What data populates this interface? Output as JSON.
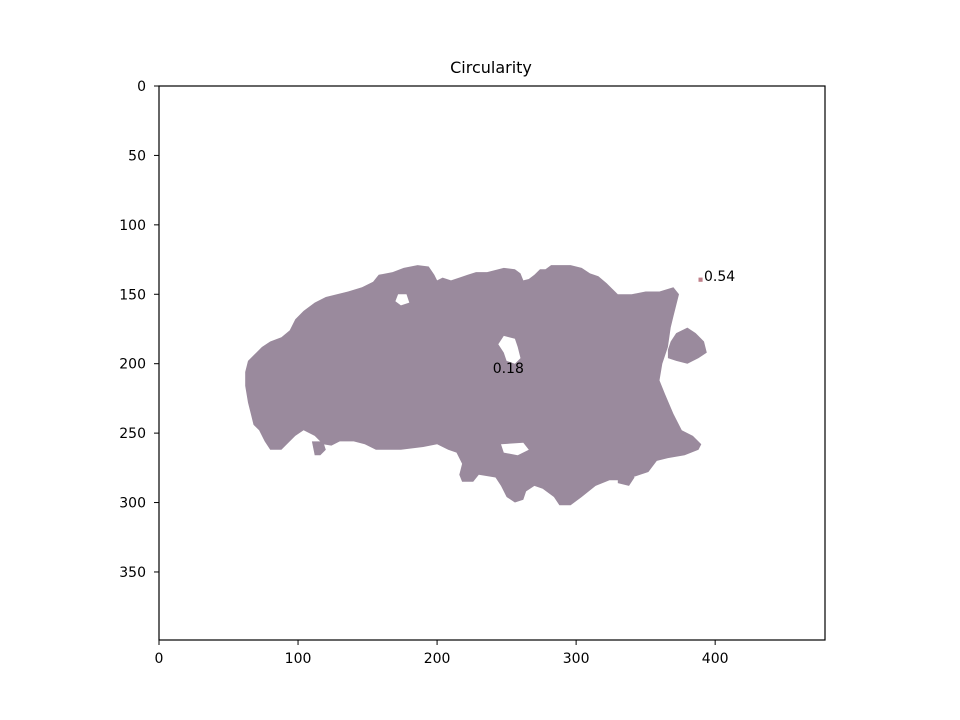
{
  "chart_data": {
    "type": "image",
    "title": "Circularity",
    "xlabel": "",
    "ylabel": "",
    "xlim": [
      0,
      479
    ],
    "ylim": [
      399,
      0
    ],
    "y_inverted": true,
    "x_ticks": [
      0,
      100,
      200,
      300,
      400
    ],
    "y_ticks": [
      0,
      50,
      100,
      150,
      200,
      250,
      300,
      350
    ],
    "x_tick_labels": [
      "0",
      "100",
      "200",
      "300",
      "400"
    ],
    "y_tick_labels": [
      "0",
      "50",
      "100",
      "150",
      "200",
      "250",
      "300",
      "350"
    ],
    "grid": false,
    "regions": [
      {
        "circularity_label": "0.18",
        "label_position": [
          240,
          203
        ],
        "color": "#9a8a9d",
        "outline": [
          [
            64,
            198
          ],
          [
            70,
            192
          ],
          [
            74,
            188
          ],
          [
            80,
            184
          ],
          [
            88,
            181
          ],
          [
            94,
            176
          ],
          [
            98,
            168
          ],
          [
            104,
            162
          ],
          [
            112,
            156
          ],
          [
            120,
            152
          ],
          [
            136,
            148
          ],
          [
            146,
            145
          ],
          [
            154,
            141
          ],
          [
            158,
            136
          ],
          [
            168,
            134
          ],
          [
            176,
            131
          ],
          [
            186,
            129
          ],
          [
            194,
            130
          ],
          [
            198,
            136
          ],
          [
            200,
            140
          ],
          [
            204,
            138
          ],
          [
            210,
            140
          ],
          [
            216,
            138
          ],
          [
            222,
            136
          ],
          [
            228,
            134
          ],
          [
            236,
            134
          ],
          [
            248,
            131
          ],
          [
            256,
            132
          ],
          [
            260,
            135
          ],
          [
            262,
            140
          ],
          [
            266,
            139
          ],
          [
            270,
            136
          ],
          [
            274,
            132
          ],
          [
            278,
            132
          ],
          [
            282,
            129
          ],
          [
            296,
            129
          ],
          [
            304,
            131
          ],
          [
            310,
            135
          ],
          [
            316,
            137
          ],
          [
            322,
            142
          ],
          [
            330,
            150
          ],
          [
            340,
            150
          ],
          [
            350,
            148
          ],
          [
            360,
            148
          ],
          [
            370,
            145
          ],
          [
            374,
            150
          ],
          [
            372,
            158
          ],
          [
            370,
            166
          ],
          [
            368,
            174
          ],
          [
            366,
            188
          ],
          [
            362,
            200
          ],
          [
            360,
            212
          ],
          [
            364,
            222
          ],
          [
            370,
            236
          ],
          [
            376,
            248
          ],
          [
            384,
            252
          ],
          [
            390,
            258
          ],
          [
            388,
            262
          ],
          [
            378,
            266
          ],
          [
            366,
            268
          ],
          [
            358,
            270
          ],
          [
            352,
            278
          ],
          [
            346,
            280
          ],
          [
            340,
            282
          ],
          [
            334,
            284
          ],
          [
            324,
            284
          ],
          [
            314,
            288
          ],
          [
            304,
            296
          ],
          [
            296,
            302
          ],
          [
            288,
            302
          ],
          [
            284,
            296
          ],
          [
            276,
            290
          ],
          [
            270,
            288
          ],
          [
            264,
            292
          ],
          [
            262,
            298
          ],
          [
            256,
            300
          ],
          [
            250,
            296
          ],
          [
            246,
            288
          ],
          [
            242,
            282
          ],
          [
            230,
            280
          ],
          [
            226,
            285
          ],
          [
            218,
            285
          ],
          [
            216,
            280
          ],
          [
            218,
            272
          ],
          [
            214,
            264
          ],
          [
            208,
            262
          ],
          [
            200,
            258
          ],
          [
            190,
            260
          ],
          [
            174,
            262
          ],
          [
            156,
            262
          ],
          [
            148,
            258
          ],
          [
            140,
            256
          ],
          [
            130,
            256
          ],
          [
            124,
            259
          ],
          [
            118,
            258
          ],
          [
            112,
            252
          ],
          [
            104,
            248
          ],
          [
            98,
            252
          ],
          [
            92,
            258
          ],
          [
            88,
            262
          ],
          [
            80,
            262
          ],
          [
            76,
            256
          ],
          [
            72,
            248
          ],
          [
            68,
            244
          ],
          [
            66,
            236
          ],
          [
            64,
            228
          ],
          [
            62,
            216
          ],
          [
            62,
            206
          ]
        ],
        "holes": [
          [
            [
              248,
              180
            ],
            [
              256,
              182
            ],
            [
              258,
              188
            ],
            [
              260,
              196
            ],
            [
              256,
              200
            ],
            [
              250,
              198
            ],
            [
              248,
              192
            ],
            [
              244,
              186
            ]
          ],
          [
            [
              246,
              258
            ],
            [
              262,
              257
            ],
            [
              266,
              262
            ],
            [
              258,
              266
            ],
            [
              248,
              264
            ]
          ],
          [
            [
              172,
              150
            ],
            [
              178,
              150
            ],
            [
              180,
              156
            ],
            [
              174,
              158
            ],
            [
              170,
              155
            ]
          ]
        ],
        "extra_blobs": [
          [
            [
              368,
              184
            ],
            [
              372,
              178
            ],
            [
              380,
              174
            ],
            [
              386,
              178
            ],
            [
              392,
              184
            ],
            [
              394,
              192
            ],
            [
              388,
              196
            ],
            [
              380,
              200
            ],
            [
              372,
              198
            ],
            [
              366,
              196
            ],
            [
              366,
              190
            ]
          ],
          [
            [
              332,
              258
            ],
            [
              338,
              256
            ],
            [
              342,
              260
            ],
            [
              340,
              268
            ],
            [
              336,
              272
            ],
            [
              330,
              268
            ]
          ],
          [
            [
              330,
              276
            ],
            [
              338,
              276
            ],
            [
              342,
              282
            ],
            [
              338,
              288
            ],
            [
              330,
              286
            ]
          ],
          [
            [
              110,
              256
            ],
            [
              118,
              256
            ],
            [
              120,
              262
            ],
            [
              116,
              266
            ],
            [
              112,
              266
            ]
          ]
        ]
      },
      {
        "circularity_label": "0.54",
        "label_position": [
          392,
          137
        ],
        "color": "#c0808a",
        "outline": [
          [
            388,
            138
          ],
          [
            391,
            138
          ],
          [
            391,
            141
          ],
          [
            388,
            141
          ]
        ]
      }
    ]
  }
}
